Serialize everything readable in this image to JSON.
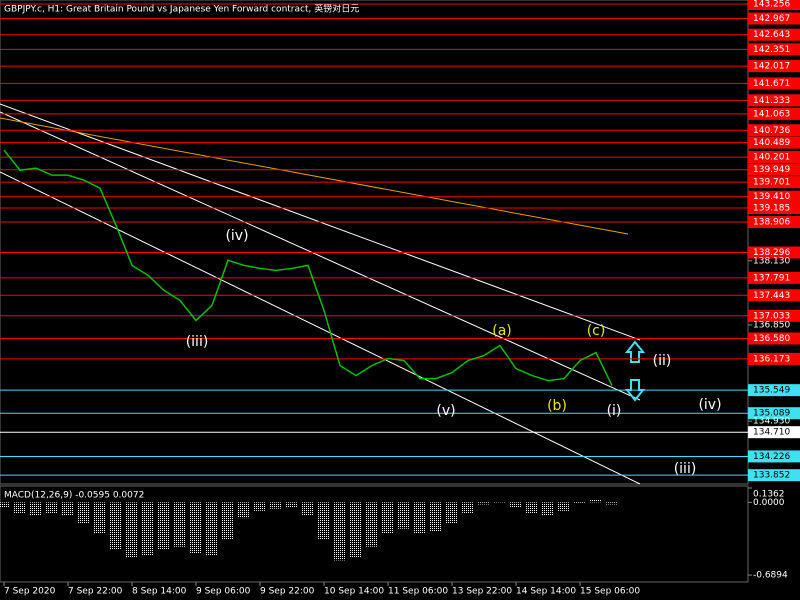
{
  "chart_data": [
    {
      "type": "line",
      "title": "GBPJPY.c, H1:  Great Britain Pound vs Japanese Yen Forward contract, 英镑对日元",
      "categories": [
        "7 Sep 2020",
        null,
        null,
        null,
        "7 Sep 22:00",
        null,
        null,
        null,
        "8 Sep 14:00",
        null,
        null,
        null,
        "9 Sep 06:00",
        null,
        null,
        null,
        "9 Sep 22:00",
        null,
        null,
        null,
        "10 Sep 14:00",
        null,
        null,
        null,
        "11 Sep 06:00",
        null,
        null,
        null,
        "13 Sep 22:00",
        null,
        null,
        null,
        "14 Sep 14:00",
        null,
        null,
        null,
        "15 Sep 06:00",
        null,
        null
      ],
      "series": [
        {
          "color": "#00c000",
          "values": [
            140.34,
            139.94,
            139.98,
            139.84,
            139.84,
            139.74,
            139.58,
            138.84,
            138.04,
            137.84,
            137.54,
            137.34,
            136.94,
            137.24,
            138.14,
            138.04,
            137.98,
            137.94,
            137.98,
            138.04,
            137.14,
            136.04,
            135.84,
            136.04,
            136.18,
            136.14,
            135.78,
            135.78,
            135.9,
            136.14,
            136.24,
            136.44,
            135.98,
            135.84,
            135.74,
            135.78,
            136.14,
            136.3,
            135.64
          ]
        }
      ],
      "ylim": [
        133.676,
        143.336
      ],
      "yticks": [
        143.256,
        142.967,
        142.643,
        142.351,
        142.017,
        141.671,
        141.333,
        141.063,
        140.736,
        140.489,
        140.201,
        139.949,
        139.701,
        {
          "value": 139.41,
          "label": "139.410"
        },
        139.185,
        138.906,
        138.296,
        {
          "value": 138.13,
          "label": "138.130"
        },
        137.791,
        137.443,
        137.033,
        {
          "value": 136.85,
          "label": "136.850"
        },
        {
          "value": 136.58,
          "label": "136.580"
        },
        136.173,
        135.549,
        135.089,
        {
          "value": 134.93,
          "label": "134.930"
        },
        {
          "value": 134.71,
          "label": "134.710"
        },
        134.226,
        133.852
      ],
      "ytick_colors": [
        "#ff0000",
        "#ff0000",
        "#ff0000",
        "#ff0000",
        "#ff0000",
        "#ff0000",
        "#ff0000",
        "#ff0000",
        "#ff0000",
        "#ff0000",
        "#ff0000",
        "#ff0000",
        "#ff0000",
        "#ff0000",
        "#ff0000",
        "#ff0000",
        "#ff0000",
        null,
        "#ff0000",
        "#ff0000",
        "#ff0000",
        null,
        "#ff0000",
        "#ff0000",
        "#40e0f0",
        "#40e0f0",
        null,
        "#ffffff",
        "#40e0f0",
        "#40e0f0"
      ],
      "annotations": [
        {
          "text": "(iv)",
          "color": "#ffffff"
        },
        {
          "text": "(iii)",
          "color": "#ffffff"
        },
        {
          "text": "(v)",
          "color": "#ffffff"
        },
        {
          "text": "(a)",
          "color": "#e8e800"
        },
        {
          "text": "(b)",
          "color": "#e8e800"
        },
        {
          "text": "(c)",
          "color": "#e8e800"
        },
        {
          "text": "(i)",
          "color": "#ffffff"
        },
        {
          "text": "(ii)",
          "color": "#ffffff"
        },
        {
          "text": "(iv)",
          "color": "#ffffff"
        },
        {
          "text": "(iii)",
          "color": "#ffffff"
        }
      ]
    },
    {
      "type": "bar",
      "title": "MACD(12,26,9) -0.0595 0.0072",
      "color": "#ffffff",
      "values": [
        -0.05,
        -0.1,
        -0.12,
        -0.1,
        -0.12,
        -0.2,
        -0.3,
        -0.45,
        -0.52,
        -0.5,
        -0.45,
        -0.42,
        -0.48,
        -0.5,
        -0.35,
        -0.15,
        -0.08,
        -0.06,
        -0.05,
        -0.12,
        -0.35,
        -0.55,
        -0.52,
        -0.42,
        -0.3,
        -0.25,
        -0.3,
        -0.28,
        -0.2,
        -0.1,
        -0.02,
        0.01,
        -0.05,
        -0.1,
        -0.12,
        -0.08,
        0.0,
        0.03,
        -0.02
      ],
      "ylim": [
        -0.755,
        0.1362
      ],
      "yticks": [
        0.1362,
        {
          "value": 0,
          "label": "0.0000"
        },
        -0.6894
      ]
    }
  ]
}
